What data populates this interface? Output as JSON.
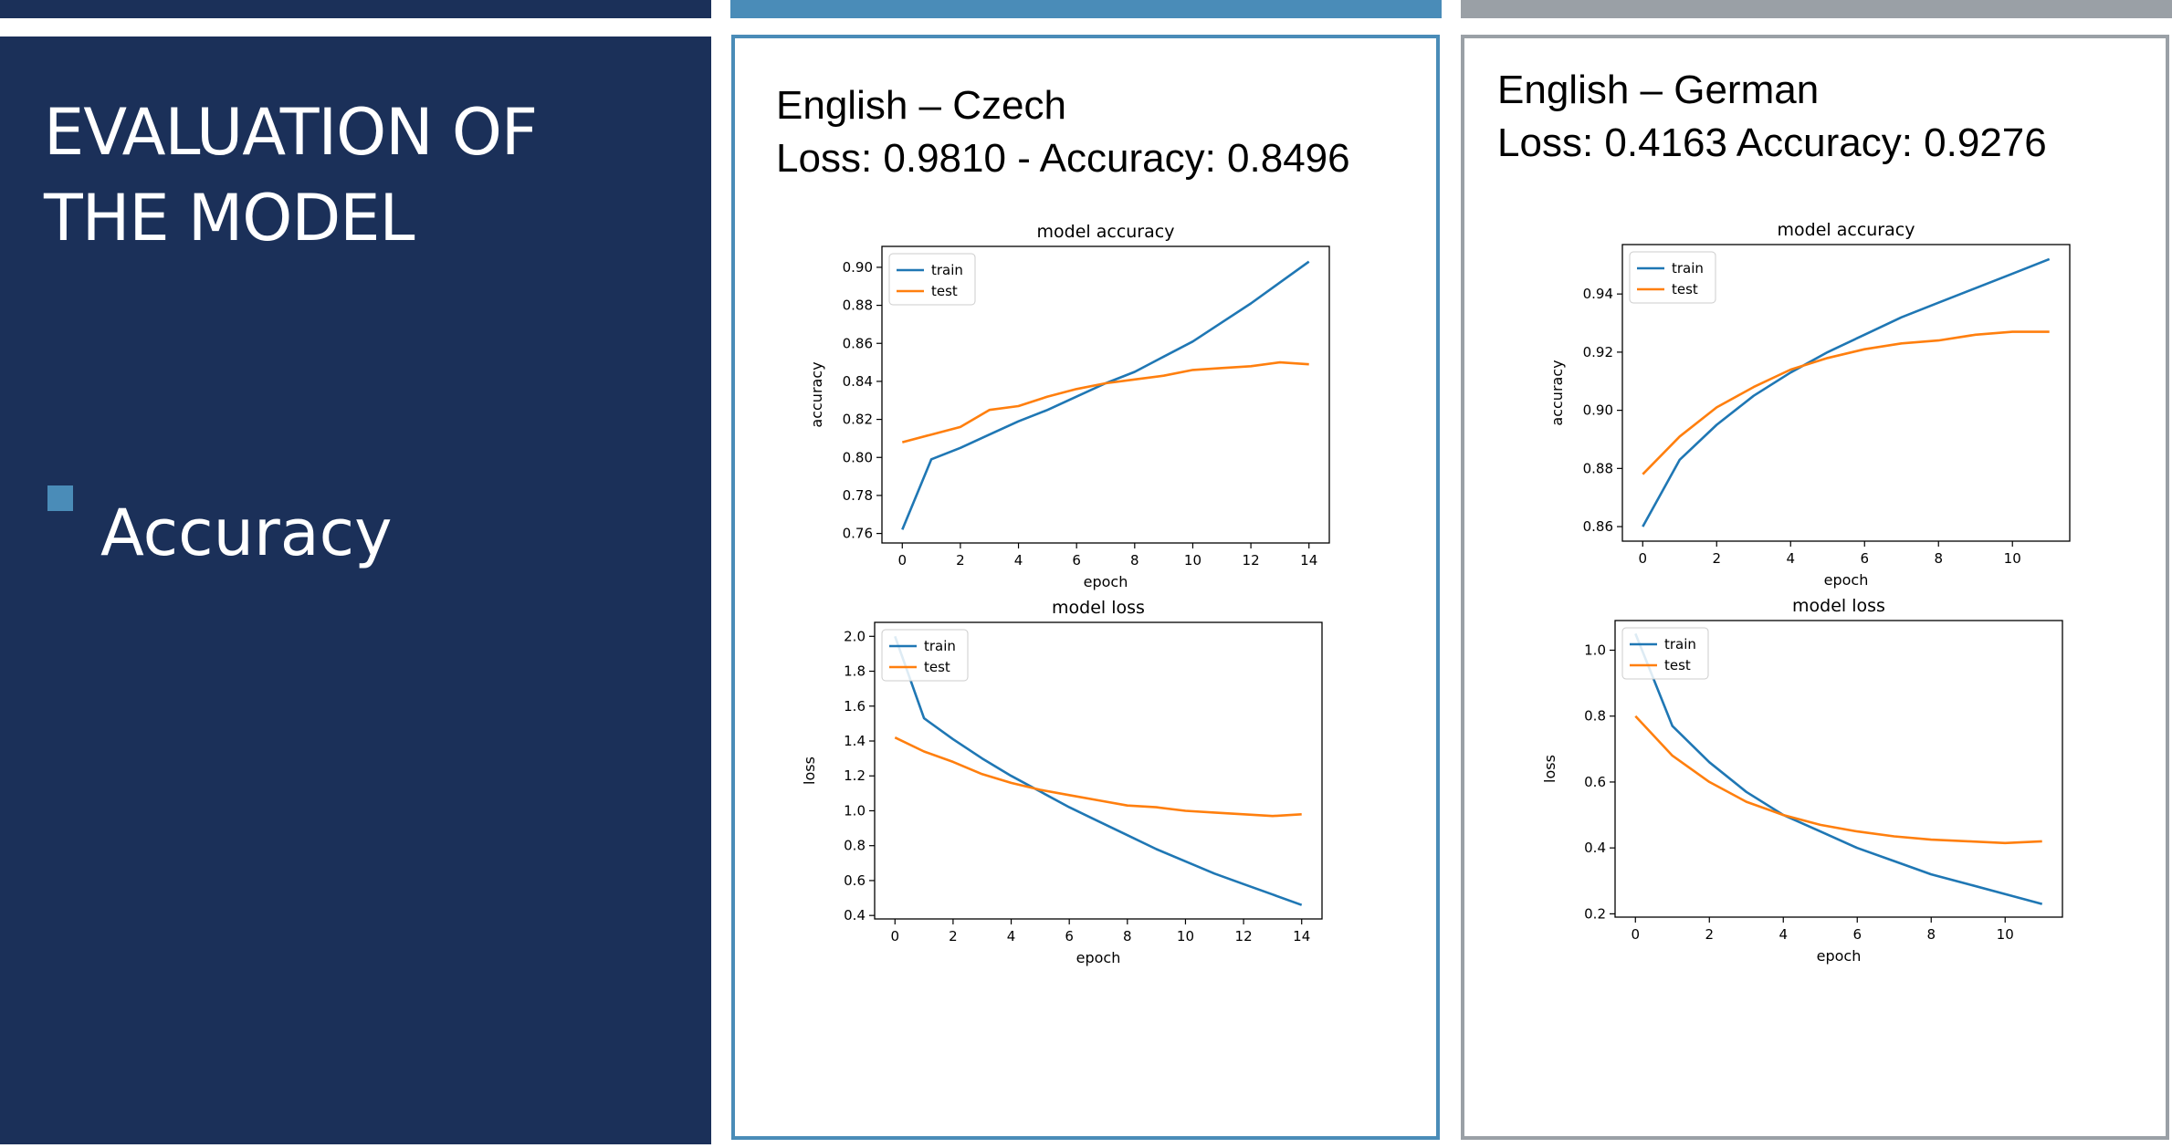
{
  "slide": {
    "title_lines": [
      "EVALUATION OF",
      "THE MODEL"
    ],
    "bullet": "Accuracy"
  },
  "colors": {
    "sidebar": "#1b3059",
    "accent_blue": "#4a8cb8",
    "accent_gray": "#9aa0a6",
    "train": "#1f77b4",
    "test": "#ff7f0e"
  },
  "panels": [
    {
      "heading": "English – Czech",
      "metrics": "Loss: 0.9810 - Accuracy: 0.8496"
    },
    {
      "heading": "English – German",
      "metrics": "Loss: 0.4163 Accuracy: 0.9276"
    }
  ],
  "chart_data": [
    {
      "type": "line",
      "title": "model accuracy",
      "xlabel": "epoch",
      "ylabel": "accuracy",
      "xlim": [
        -0.7,
        14.7
      ],
      "ylim": [
        0.755,
        0.911
      ],
      "xticks": [
        0,
        2,
        4,
        6,
        8,
        10,
        12,
        14
      ],
      "yticks": [
        0.76,
        0.78,
        0.8,
        0.82,
        0.84,
        0.86,
        0.88,
        0.9
      ],
      "ytick_labels": [
        "0.76",
        "0.78",
        "0.80",
        "0.82",
        "0.84",
        "0.86",
        "0.88",
        "0.90"
      ],
      "legend": "upper left",
      "grid": false,
      "x": [
        0,
        1,
        2,
        3,
        4,
        5,
        6,
        7,
        8,
        9,
        10,
        11,
        12,
        13,
        14
      ],
      "series": [
        {
          "name": "train",
          "values": [
            0.762,
            0.799,
            0.805,
            0.812,
            0.819,
            0.825,
            0.832,
            0.839,
            0.845,
            0.853,
            0.861,
            0.871,
            0.881,
            0.892,
            0.903
          ]
        },
        {
          "name": "test",
          "values": [
            0.808,
            0.812,
            0.816,
            0.825,
            0.827,
            0.832,
            0.836,
            0.839,
            0.841,
            0.843,
            0.846,
            0.847,
            0.848,
            0.85,
            0.849
          ]
        }
      ]
    },
    {
      "type": "line",
      "title": "model loss",
      "xlabel": "epoch",
      "ylabel": "loss",
      "xlim": [
        -0.7,
        14.7
      ],
      "ylim": [
        0.38,
        2.08
      ],
      "xticks": [
        0,
        2,
        4,
        6,
        8,
        10,
        12,
        14
      ],
      "yticks": [
        0.4,
        0.6,
        0.8,
        1.0,
        1.2,
        1.4,
        1.6,
        1.8,
        2.0
      ],
      "ytick_labels": [
        "0.4",
        "0.6",
        "0.8",
        "1.0",
        "1.2",
        "1.4",
        "1.6",
        "1.8",
        "2.0"
      ],
      "legend": "upper left",
      "grid": false,
      "x": [
        0,
        1,
        2,
        3,
        4,
        5,
        6,
        7,
        8,
        9,
        10,
        11,
        12,
        13,
        14
      ],
      "series": [
        {
          "name": "train",
          "values": [
            2.0,
            1.53,
            1.41,
            1.3,
            1.2,
            1.11,
            1.02,
            0.94,
            0.86,
            0.78,
            0.71,
            0.64,
            0.58,
            0.52,
            0.46
          ]
        },
        {
          "name": "test",
          "values": [
            1.42,
            1.34,
            1.28,
            1.21,
            1.16,
            1.12,
            1.09,
            1.06,
            1.03,
            1.02,
            1.0,
            0.99,
            0.98,
            0.97,
            0.98
          ]
        }
      ]
    },
    {
      "type": "line",
      "title": "model accuracy",
      "xlabel": "epoch",
      "ylabel": "accuracy",
      "xlim": [
        -0.55,
        11.55
      ],
      "ylim": [
        0.855,
        0.957
      ],
      "xticks": [
        0,
        2,
        4,
        6,
        8,
        10
      ],
      "yticks": [
        0.86,
        0.88,
        0.9,
        0.92,
        0.94
      ],
      "ytick_labels": [
        "0.86",
        "0.88",
        "0.90",
        "0.92",
        "0.94"
      ],
      "legend": "upper left",
      "grid": false,
      "x": [
        0,
        1,
        2,
        3,
        4,
        5,
        6,
        7,
        8,
        9,
        10,
        11
      ],
      "series": [
        {
          "name": "train",
          "values": [
            0.86,
            0.883,
            0.895,
            0.905,
            0.913,
            0.92,
            0.926,
            0.932,
            0.937,
            0.942,
            0.947,
            0.952
          ]
        },
        {
          "name": "test",
          "values": [
            0.878,
            0.891,
            0.901,
            0.908,
            0.914,
            0.918,
            0.921,
            0.923,
            0.924,
            0.926,
            0.927,
            0.927
          ]
        }
      ]
    },
    {
      "type": "line",
      "title": "model loss",
      "xlabel": "epoch",
      "ylabel": "loss",
      "xlim": [
        -0.55,
        11.55
      ],
      "ylim": [
        0.19,
        1.09
      ],
      "xticks": [
        0,
        2,
        4,
        6,
        8,
        10
      ],
      "yticks": [
        0.2,
        0.4,
        0.6,
        0.8,
        1.0
      ],
      "ytick_labels": [
        "0.2",
        "0.4",
        "0.6",
        "0.8",
        "1.0"
      ],
      "legend": "upper left",
      "grid": false,
      "x": [
        0,
        1,
        2,
        3,
        4,
        5,
        6,
        7,
        8,
        9,
        10,
        11
      ],
      "series": [
        {
          "name": "train",
          "values": [
            1.05,
            0.77,
            0.66,
            0.57,
            0.5,
            0.45,
            0.4,
            0.36,
            0.32,
            0.29,
            0.26,
            0.23
          ]
        },
        {
          "name": "test",
          "values": [
            0.8,
            0.68,
            0.6,
            0.54,
            0.5,
            0.47,
            0.45,
            0.435,
            0.425,
            0.42,
            0.415,
            0.42
          ]
        }
      ]
    }
  ]
}
